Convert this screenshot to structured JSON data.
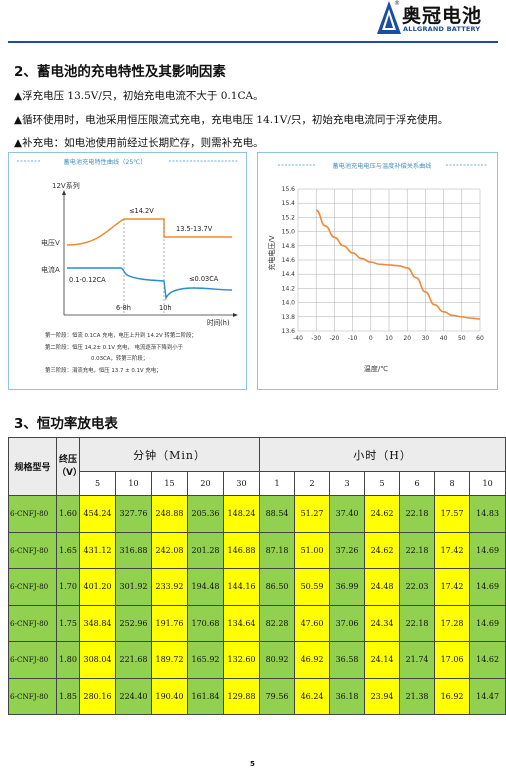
{
  "header": {
    "brand_cn": "奥冠电池",
    "brand_en": "ALLGRAND BATTERY",
    "reg_mark": "®"
  },
  "section2": {
    "title": "2、蓄电池的充电特性及其影响因素",
    "bullets": [
      "▲浮充电压 13.5V/只，初始充电电流不大于 0.1CA。",
      "▲循环使用时，电池采用恒压限流式充电，充电电压 14.1V/只，初始充电电流同于浮充使用。",
      "▲补充电：如电池使用前经过长期贮存，则需补充电。"
    ]
  },
  "left_chart": {
    "title": "蓄电池充电特性曲线（25℃）",
    "series_label": "12V系列",
    "ylabel_voltage": "电压V",
    "ylabel_current": "电流A",
    "label_peak": "≤14.2V",
    "label_float": "13.5-13.7V",
    "label_current": "0.1-0.12CA",
    "label_small_current": "≤0.03CA",
    "label_6_8h": "6-8h",
    "label_10h": "10h",
    "xlabel": "时间(h)",
    "notes": [
      "第一阶段：恒流 0.1CA 充电，电压上升到 14.2V 转第二阶段；",
      "第二阶段：恒压 14.2± 0.1V 充电，   电流逐渐下降到小于",
      "0.03CA，转第三阶段；",
      "第三阶段：涓流充电，恒压 13.7 ± 0.1V 充电；"
    ]
  },
  "right_chart": {
    "title": "蓄电池充电电压与温度补偿关系曲线",
    "ylabel": "充电电压/V",
    "xlabel": "温度/℃",
    "y_ticks": [
      "15.6",
      "15.4",
      "15.2",
      "15.0",
      "14.8",
      "14.6",
      "14.4",
      "14.2",
      "14.0",
      "13.8",
      "13.6"
    ],
    "x_ticks": [
      "-40",
      "-30",
      "-20",
      "-10",
      "0",
      "10",
      "20",
      "30",
      "40",
      "50",
      "60"
    ]
  },
  "chart_data": {
    "type": "line",
    "title": "蓄电池充电电压与温度补偿关系曲线",
    "xlabel": "温度/℃",
    "ylabel": "充电电压/V",
    "xlim": [
      -40,
      60
    ],
    "ylim": [
      13.6,
      15.6
    ],
    "x": [
      -30,
      -25,
      -20,
      -15,
      -10,
      -5,
      0,
      5,
      10,
      15,
      20,
      25,
      30,
      35,
      40,
      45,
      50,
      55,
      60
    ],
    "y": [
      15.3,
      15.08,
      14.92,
      14.8,
      14.7,
      14.62,
      14.57,
      14.54,
      14.53,
      14.52,
      14.49,
      14.35,
      14.15,
      13.97,
      13.87,
      13.82,
      13.8,
      13.78,
      13.77
    ]
  },
  "section3": {
    "title": "3、恒功率放电表"
  },
  "table": {
    "model_header": "规格型号",
    "voltage_header": "终压",
    "voltage_unit": "（V）",
    "minutes_header": "分钟（Min）",
    "hours_header": "小时（H）",
    "minute_cols": [
      "5",
      "10",
      "15",
      "20",
      "30"
    ],
    "hour_cols": [
      "1",
      "2",
      "3",
      "5",
      "6",
      "8",
      "10"
    ],
    "rows": [
      {
        "model": "6-CNFJ-80",
        "v": "1.60",
        "vals": [
          "454.24",
          "327.76",
          "248.88",
          "205.36",
          "148.24",
          "88.54",
          "51.27",
          "37.40",
          "24.62",
          "22.18",
          "17.57",
          "14.83"
        ]
      },
      {
        "model": "6-CNFJ-80",
        "v": "1.65",
        "vals": [
          "431.12",
          "316.88",
          "242.08",
          "201.28",
          "146.88",
          "87.18",
          "51.00",
          "37.26",
          "24.62",
          "22.18",
          "17.42",
          "14.69"
        ]
      },
      {
        "model": "6-CNFJ-80",
        "v": "1.70",
        "vals": [
          "401.20",
          "301.92",
          "233.92",
          "194.48",
          "144.16",
          "86.50",
          "50.59",
          "36.99",
          "24.48",
          "22.03",
          "17.42",
          "14.69"
        ]
      },
      {
        "model": "6-CNFJ-80",
        "v": "1.75",
        "vals": [
          "348.84",
          "252.96",
          "191.76",
          "170.68",
          "134.64",
          "82.28",
          "47.60",
          "37.06",
          "24.34",
          "22.18",
          "17.28",
          "14.69"
        ]
      },
      {
        "model": "6-CNFJ-80",
        "v": "1.80",
        "vals": [
          "308.04",
          "221.68",
          "189.72",
          "165.92",
          "132.60",
          "80.92",
          "46.92",
          "36.58",
          "24.14",
          "21.74",
          "17.06",
          "14.62"
        ]
      },
      {
        "model": "6-CNFJ-80",
        "v": "1.85",
        "vals": [
          "280.16",
          "224.40",
          "190.40",
          "161.84",
          "129.88",
          "79.56",
          "46.24",
          "36.18",
          "23.94",
          "21.38",
          "16.92",
          "14.47"
        ]
      }
    ]
  },
  "footer": {
    "page_number": "5"
  }
}
